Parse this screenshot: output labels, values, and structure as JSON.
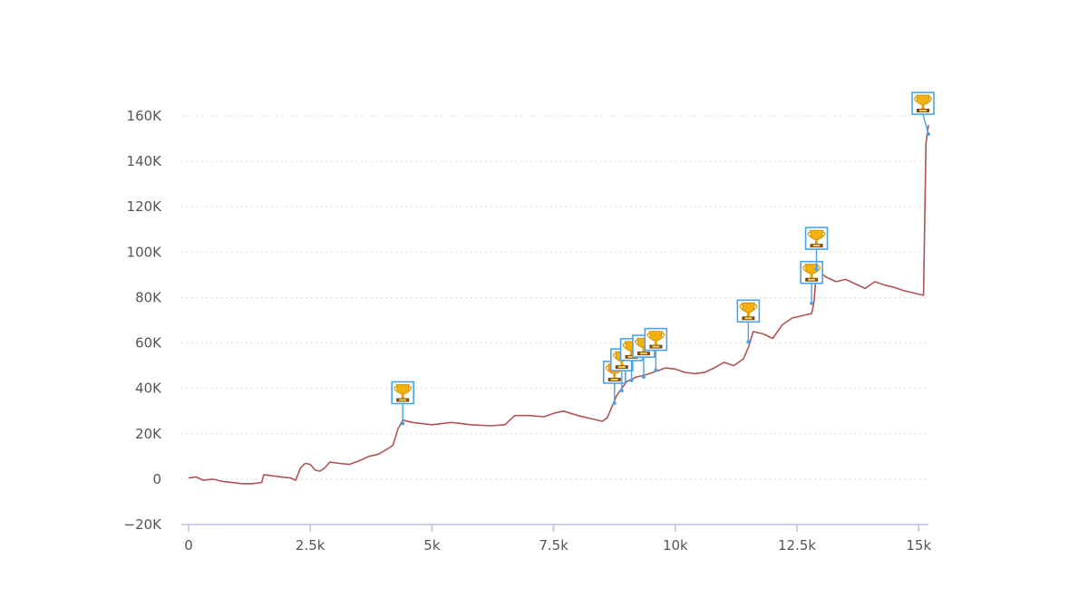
{
  "chart_data": {
    "type": "line",
    "title": "",
    "xlabel": "",
    "ylabel": "",
    "xlim": [
      0,
      15200
    ],
    "ylim": [
      -20000,
      160000
    ],
    "x_ticks": [
      0,
      2500,
      5000,
      7500,
      10000,
      12500,
      15000
    ],
    "x_tick_labels": [
      "0",
      "2.5k",
      "5k",
      "7.5k",
      "10k",
      "12.5k",
      "15k"
    ],
    "y_ticks": [
      -20000,
      0,
      20000,
      40000,
      60000,
      80000,
      100000,
      120000,
      140000,
      160000
    ],
    "y_tick_labels": [
      "−20K",
      "0",
      "20K",
      "40K",
      "60K",
      "80K",
      "100K",
      "120K",
      "140K",
      "160K"
    ],
    "grid": "horizontal-dotted",
    "line_color": "#b05454",
    "marker_color": "#4aa3e8",
    "series": [
      {
        "x": [
          0,
          150,
          300,
          500,
          700,
          900,
          1100,
          1300,
          1500,
          1550,
          1700,
          1900,
          2100,
          2200,
          2300,
          2400,
          2500,
          2600,
          2700,
          2800,
          2900,
          3100,
          3300,
          3500,
          3700,
          3900,
          4100,
          4200,
          4300,
          4400,
          4600,
          5000,
          5400,
          5800,
          6200,
          6500,
          6700,
          7000,
          7300,
          7500,
          7700,
          8000,
          8300,
          8500,
          8600,
          8700,
          8800,
          9000,
          9200,
          9400,
          9600,
          9800,
          10000,
          10200,
          10400,
          10600,
          10800,
          11000,
          11200,
          11400,
          11500,
          11600,
          11800,
          12000,
          12200,
          12400,
          12600,
          12800,
          12850,
          12900,
          13100,
          13300,
          13500,
          13700,
          13900,
          14100,
          14300,
          14500,
          14700,
          14900,
          15100,
          15150,
          15200
        ],
        "y": [
          500,
          1000,
          -500,
          0,
          -1000,
          -1500,
          -2000,
          -2000,
          -1500,
          2000,
          1500,
          1000,
          500,
          -500,
          5000,
          7000,
          6500,
          4000,
          3500,
          5000,
          7500,
          7000,
          6500,
          8000,
          10000,
          11000,
          13500,
          15000,
          22000,
          26000,
          25000,
          24000,
          25000,
          24000,
          23500,
          24000,
          28000,
          28000,
          27500,
          29000,
          30000,
          28000,
          26500,
          25500,
          27000,
          32000,
          37000,
          43000,
          45000,
          46000,
          47500,
          49000,
          48500,
          47000,
          46500,
          47000,
          49000,
          51500,
          50000,
          53000,
          58000,
          65000,
          64000,
          62000,
          68000,
          71000,
          72000,
          73000,
          78000,
          92000,
          89000,
          87000,
          88000,
          86000,
          84000,
          87000,
          85500,
          84500,
          83000,
          82000,
          81000,
          148000,
          156000
        ]
      }
    ],
    "annotations": [
      {
        "type": "trophy-marker",
        "x": 4400,
        "y": 24500
      },
      {
        "type": "trophy-marker",
        "x": 8750,
        "y": 33500
      },
      {
        "type": "trophy-marker",
        "x": 8900,
        "y": 39000
      },
      {
        "type": "trophy-marker",
        "x": 9100,
        "y": 43500
      },
      {
        "type": "trophy-marker",
        "x": 9350,
        "y": 45000
      },
      {
        "type": "trophy-marker",
        "x": 9600,
        "y": 48000
      },
      {
        "type": "trophy-marker",
        "x": 11500,
        "y": 60500
      },
      {
        "type": "trophy-marker",
        "x": 12800,
        "y": 77500
      },
      {
        "type": "trophy-marker",
        "x": 12900,
        "y": 92500
      },
      {
        "type": "trophy-marker",
        "x": 15200,
        "y": 152000
      }
    ]
  }
}
